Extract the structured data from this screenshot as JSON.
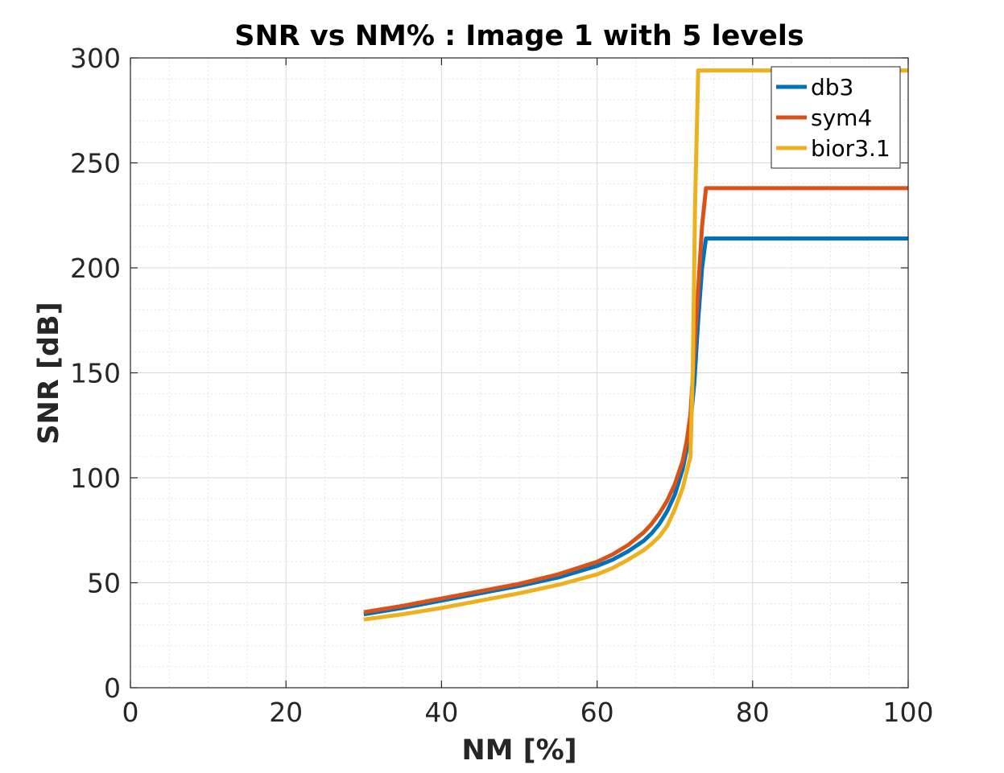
{
  "chart_data": {
    "type": "line",
    "title": "SNR vs NM% : Image 1 with 5 levels",
    "xlabel": "NM [%]",
    "ylabel": "SNR [dB]",
    "xlim": [
      0,
      100
    ],
    "ylim": [
      0,
      300
    ],
    "xticks": [
      0,
      20,
      40,
      60,
      80,
      100
    ],
    "yticks": [
      0,
      50,
      100,
      150,
      200,
      250,
      300
    ],
    "xtick_labels": [
      "0",
      "20",
      "40",
      "60",
      "80",
      "100"
    ],
    "ytick_labels": [
      "0",
      "50",
      "100",
      "150",
      "200",
      "250",
      "300"
    ],
    "grid": true,
    "minor_grid": true,
    "legend_position": "top-right",
    "series": [
      {
        "name": "db3",
        "color": "#0072BD",
        "x": [
          30,
          35,
          40,
          45,
          50,
          55,
          60,
          62,
          64,
          66,
          67,
          68,
          69,
          70,
          71,
          71.5,
          72,
          72.5,
          73,
          73.5,
          74,
          80,
          90,
          100
        ],
        "y": [
          35,
          38,
          41.5,
          45,
          48.5,
          52.5,
          58,
          61,
          65,
          70,
          73.5,
          78,
          84,
          92,
          104,
          113,
          126,
          145,
          175,
          200,
          214,
          214,
          214,
          214
        ]
      },
      {
        "name": "sym4",
        "color": "#D95319",
        "x": [
          30,
          35,
          40,
          45,
          50,
          55,
          60,
          62,
          64,
          66,
          67,
          68,
          69,
          70,
          71,
          71.5,
          72,
          72.5,
          73,
          73.5,
          74,
          80,
          90,
          100
        ],
        "y": [
          36,
          39,
          42.5,
          46,
          49.5,
          54,
          60,
          63.5,
          68,
          74,
          78,
          83,
          89,
          97,
          108,
          117,
          130,
          160,
          190,
          220,
          238,
          238,
          238,
          238
        ]
      },
      {
        "name": "bior3.1",
        "color": "#EDB120",
        "x": [
          30,
          35,
          40,
          45,
          50,
          55,
          60,
          62,
          64,
          66,
          67,
          68,
          69,
          70,
          71,
          72,
          72.3,
          72.6,
          73,
          80,
          90,
          100
        ],
        "y": [
          32.5,
          35,
          38,
          41.5,
          45,
          49,
          54,
          57,
          61,
          65.5,
          68.5,
          72,
          77,
          85,
          95,
          110,
          150,
          230,
          294,
          294,
          294,
          294
        ]
      }
    ]
  }
}
